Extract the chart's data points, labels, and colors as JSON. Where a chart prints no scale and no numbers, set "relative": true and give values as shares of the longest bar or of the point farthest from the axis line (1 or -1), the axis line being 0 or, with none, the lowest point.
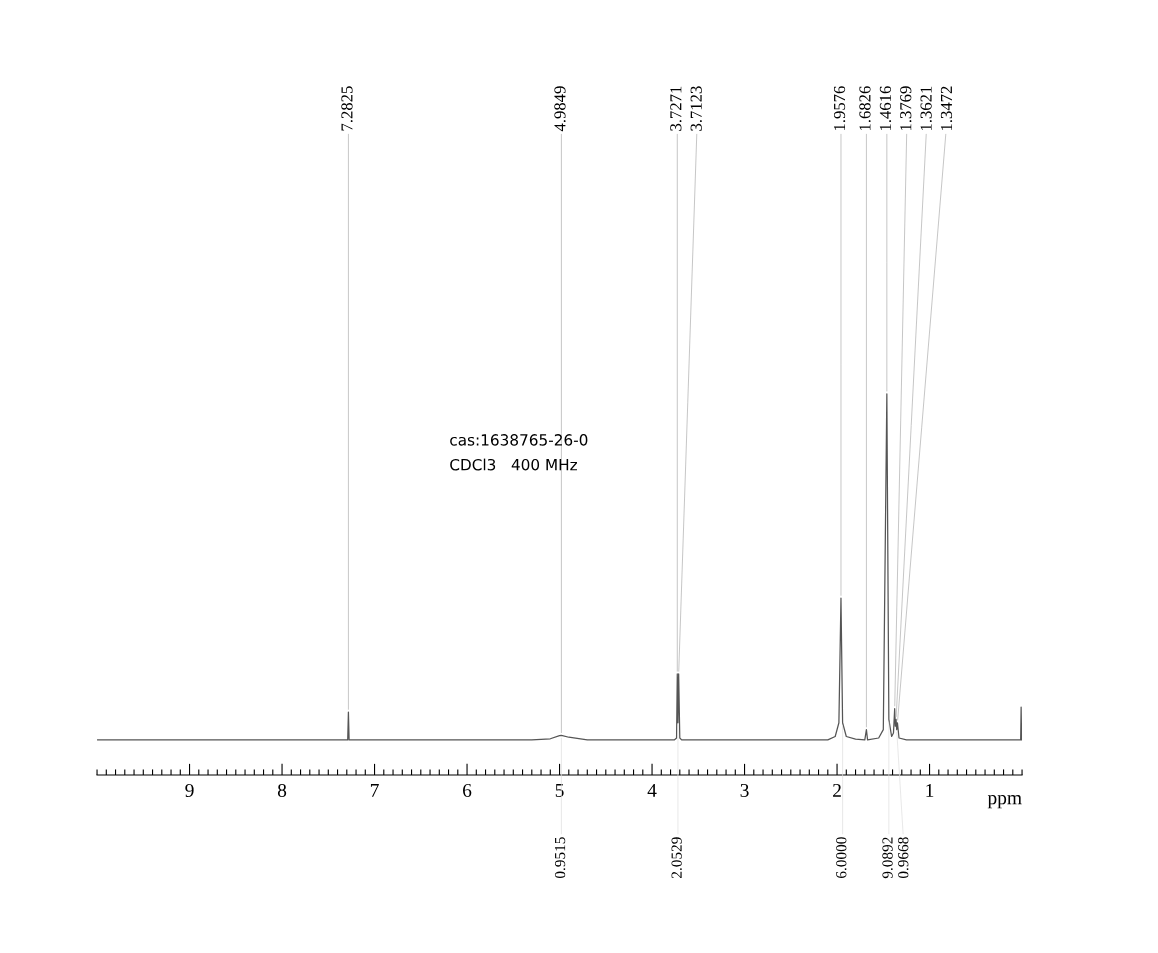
{
  "chart_data": {
    "type": "line",
    "relative": true,
    "xlabel": "ppm",
    "xlim": [
      10,
      0
    ],
    "grid": false,
    "legend": false,
    "marker": "none",
    "line_style": "solid",
    "tick_labels": "x",
    "xticks": [
      9,
      8,
      7,
      6,
      5,
      4,
      3,
      2,
      1
    ],
    "series": [
      {
        "color": "#555555",
        "x": [
          10.0,
          7.32,
          7.29,
          7.2825,
          7.275,
          5.3,
          5.1,
          5.0,
          4.98,
          4.9,
          4.7,
          3.76,
          3.735,
          3.7271,
          3.72,
          3.7123,
          3.7,
          3.68,
          2.1,
          2.02,
          1.98,
          1.9576,
          1.94,
          1.9,
          1.8,
          1.7,
          1.6826,
          1.67,
          1.55,
          1.5,
          1.4616,
          1.44,
          1.41,
          1.39,
          1.3769,
          1.37,
          1.3621,
          1.355,
          1.3472,
          1.33,
          1.25,
          0.015,
          0.01,
          0.005
        ],
        "values": [
          0.092,
          0.092,
          0.092,
          0.165,
          0.092,
          0.092,
          0.095,
          0.103,
          0.104,
          0.099,
          0.092,
          0.092,
          0.097,
          0.265,
          0.137,
          0.265,
          0.097,
          0.092,
          0.092,
          0.101,
          0.137,
          0.464,
          0.137,
          0.101,
          0.094,
          0.092,
          0.119,
          0.092,
          0.097,
          0.119,
          1.0,
          0.146,
          0.101,
          0.11,
          0.174,
          0.128,
          0.146,
          0.119,
          0.137,
          0.097,
          0.092,
          0.092,
          0.178,
          0.092
        ]
      }
    ],
    "annotations": [
      "cas:1638765-26-0",
      "CDCl3   400 MHz",
      {
        "text": "7.2825",
        "x": 7.2825,
        "y": 0.165
      },
      {
        "text": "4.9849",
        "x": 4.98,
        "y": 0.104
      },
      {
        "text": "3.7271",
        "x": 3.7271,
        "y": 0.265
      },
      {
        "text": "3.7123",
        "x": 3.7123,
        "y": 0.265
      },
      {
        "text": "1.9576",
        "x": 1.9576,
        "y": 0.464
      },
      {
        "text": "1.6826",
        "x": 1.6826,
        "y": 0.119
      },
      {
        "text": "1.4616",
        "x": 1.4616,
        "y": 1.0
      },
      {
        "text": "1.3769",
        "x": 1.3769,
        "y": 0.174
      },
      {
        "text": "1.3621",
        "x": 1.3621,
        "y": 0.146
      },
      {
        "text": "1.3472",
        "x": 1.3472,
        "y": 0.137
      },
      {
        "text": "0.9515",
        "x": 4.98,
        "y": 0.104
      },
      {
        "text": "2.0529",
        "x": 3.72,
        "y": 0.137
      },
      {
        "text": "6.0000",
        "x": 1.94,
        "y": 0.137
      },
      {
        "text": "9.0892",
        "x": 1.44,
        "y": 0.146
      },
      {
        "text": "0.9668",
        "x": 1.355,
        "y": 0.119
      }
    ]
  }
}
